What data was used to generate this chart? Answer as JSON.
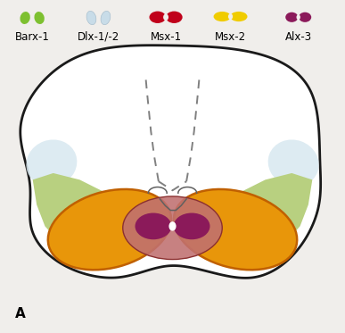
{
  "bg_color": "#f0eeeb",
  "border_color": "#1a1a1a",
  "legend_labels": [
    "Barx-1",
    "Dlx-1/-2",
    "Msx-1",
    "Msx-2",
    "Alx-3"
  ],
  "legend_colors": [
    "#7dc030",
    "#c8dce8",
    "#c0001a",
    "#f0cc00",
    "#8b1a5a"
  ],
  "green_light": "#b8d080",
  "orange_main": "#e8960a",
  "orange_border": "#c06000",
  "pink_region": "#c07070",
  "purple_center": "#8b1a5a",
  "blue_light": "#d8e8f0",
  "label_fontsize": 8.5
}
